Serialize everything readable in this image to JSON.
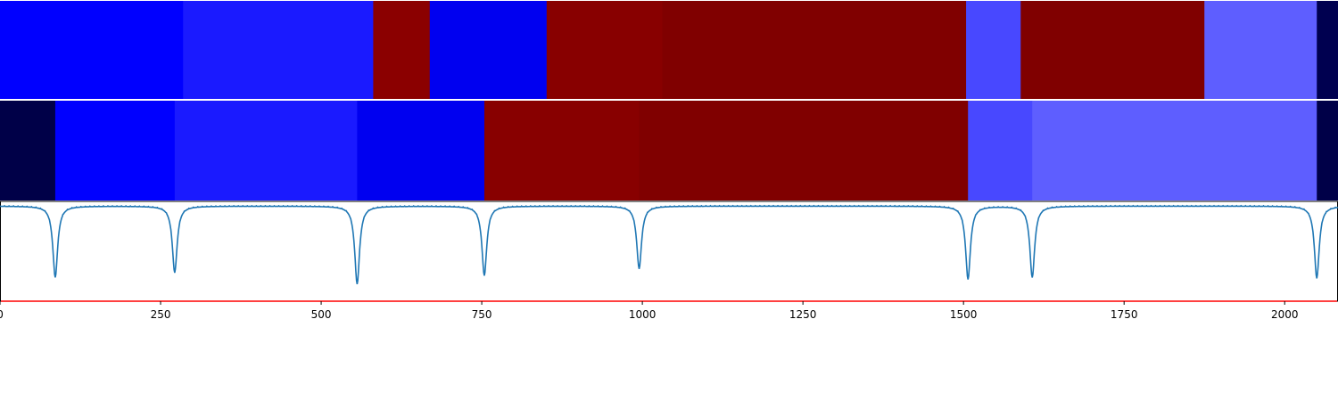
{
  "chart_data": {
    "type": "heatmap",
    "xlim": [
      0,
      2083
    ],
    "xticks": [
      0,
      250,
      500,
      750,
      1000,
      1250,
      1500,
      1750,
      2000
    ],
    "xtick_labels": [
      "0",
      "250",
      "500",
      "750",
      "1000",
      "1250",
      "1500",
      "1750",
      "2000"
    ],
    "grid": false,
    "legend": "none",
    "tracks": [
      {
        "segments": [
          {
            "x0": 0,
            "x1": 285,
            "color": "#0000ff"
          },
          {
            "x0": 285,
            "x1": 581,
            "color": "#1a1aff"
          },
          {
            "x0": 581,
            "x1": 669,
            "color": "#8b0000"
          },
          {
            "x0": 669,
            "x1": 851,
            "color": "#0000f0"
          },
          {
            "x0": 851,
            "x1": 1031,
            "color": "#880000"
          },
          {
            "x0": 1031,
            "x1": 1504,
            "color": "#800000"
          },
          {
            "x0": 1504,
            "x1": 1589,
            "color": "#4848ff"
          },
          {
            "x0": 1589,
            "x1": 1875,
            "color": "#800000"
          },
          {
            "x0": 1875,
            "x1": 2050,
            "color": "#5e5eff"
          },
          {
            "x0": 2050,
            "x1": 2083,
            "color": "#000050"
          }
        ]
      },
      {
        "segments": [
          {
            "x0": 0,
            "x1": 86,
            "color": "#000048"
          },
          {
            "x0": 86,
            "x1": 272,
            "color": "#0000ff"
          },
          {
            "x0": 272,
            "x1": 556,
            "color": "#1a1aff"
          },
          {
            "x0": 556,
            "x1": 754,
            "color": "#0000f0"
          },
          {
            "x0": 754,
            "x1": 995,
            "color": "#880000"
          },
          {
            "x0": 995,
            "x1": 1507,
            "color": "#800000"
          },
          {
            "x0": 1507,
            "x1": 1607,
            "color": "#4848ff"
          },
          {
            "x0": 1607,
            "x1": 2050,
            "color": "#5e5eff"
          },
          {
            "x0": 2050,
            "x1": 2083,
            "color": "#000048"
          }
        ]
      }
    ],
    "line": {
      "color": "#1f77b4",
      "baseline": 0,
      "ylim": [
        -1.0,
        0.05
      ],
      "dips": [
        {
          "x": 86,
          "depth": -0.75
        },
        {
          "x": 272,
          "depth": -0.7
        },
        {
          "x": 556,
          "depth": -0.82
        },
        {
          "x": 754,
          "depth": -0.73
        },
        {
          "x": 995,
          "depth": -0.66
        },
        {
          "x": 1507,
          "depth": -0.77
        },
        {
          "x": 1607,
          "depth": -0.75
        },
        {
          "x": 2050,
          "depth": -0.76
        }
      ]
    },
    "threshold": {
      "y": -1.0,
      "color": "#ff0000"
    }
  }
}
